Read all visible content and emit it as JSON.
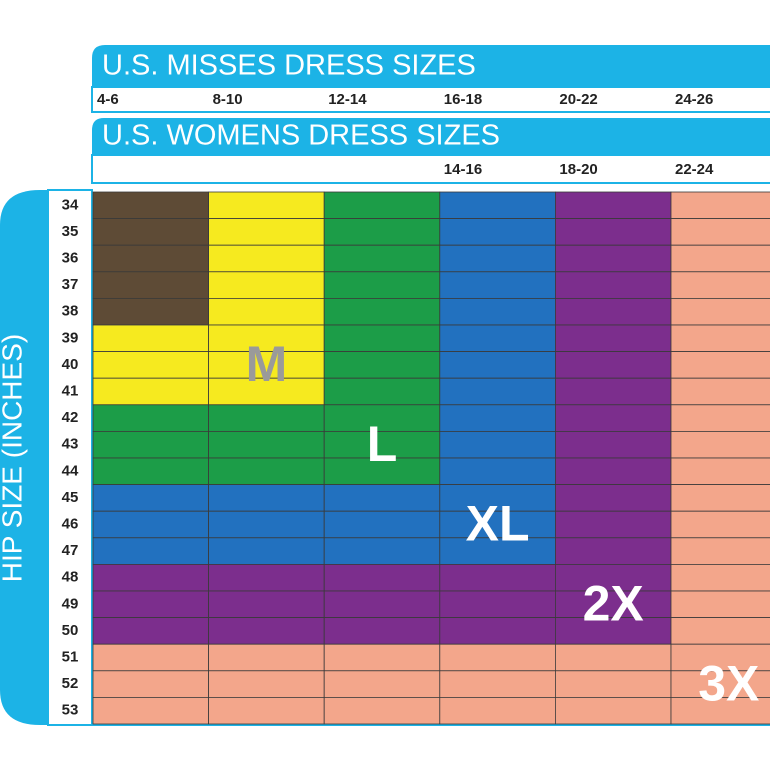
{
  "header": {
    "misses_title": "U.S. MISSES DRESS SIZES",
    "womens_title": "U.S. WOMENS DRESS SIZES",
    "side_label": "HIP SIZE (INCHES)"
  },
  "misses_sizes": [
    "4-6",
    "8-10",
    "12-14",
    "16-18",
    "20-22",
    "24-26"
  ],
  "womens_sizes": [
    null,
    null,
    null,
    "14-16",
    "18-20",
    "22-24"
  ],
  "hip_sizes": [
    34,
    35,
    36,
    37,
    38,
    39,
    40,
    41,
    42,
    43,
    44,
    45,
    46,
    47,
    48,
    49,
    50,
    51,
    52,
    53
  ],
  "size_zones": [
    {
      "color": "#5e4b36",
      "hips": [
        34,
        35,
        36,
        37,
        38
      ]
    },
    {
      "label": "M",
      "color": "#f6ea1f",
      "label_color": "#9a9a9a",
      "hips": [
        39,
        40,
        41
      ]
    },
    {
      "label": "L",
      "color": "#1c9d48",
      "label_color": "#ffffff",
      "hips": [
        42,
        43,
        44
      ]
    },
    {
      "label": "XL",
      "color": "#2271bf",
      "label_color": "#ffffff",
      "hips": [
        45,
        46,
        47
      ]
    },
    {
      "label": "2X",
      "color": "#7c2e8d",
      "label_color": "#ffffff",
      "hips": [
        48,
        49,
        50
      ]
    },
    {
      "label": "3X",
      "color": "#f3a68b",
      "label_color": "#ffffff",
      "hips": [
        51,
        52,
        53
      ]
    }
  ]
}
